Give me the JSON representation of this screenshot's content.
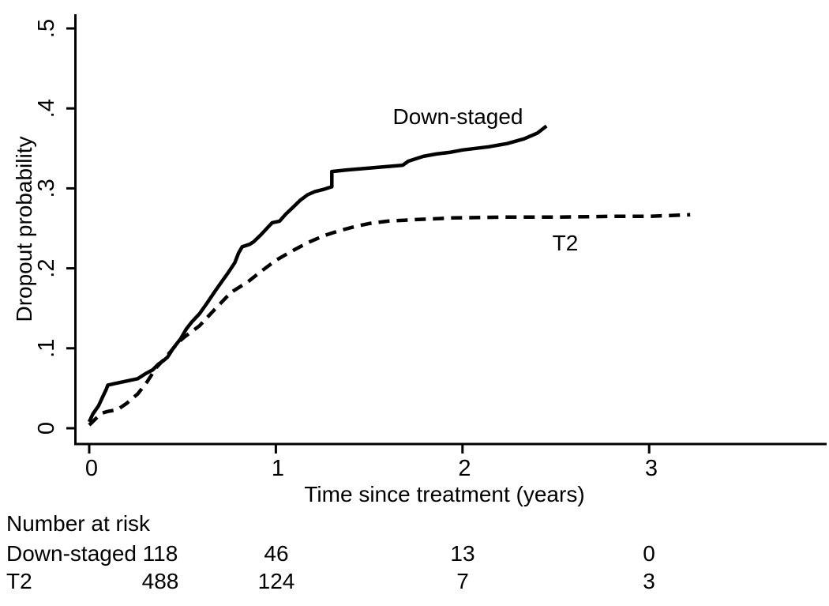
{
  "figure": {
    "background_color": "#ffffff",
    "line_color": "#000000"
  },
  "chart_data": {
    "type": "line",
    "title": "",
    "xlabel": "Time since treatment (years)",
    "ylabel": "Dropout probability",
    "xlim": [
      0,
      3.9
    ],
    "ylim": [
      0,
      0.52
    ],
    "grid": false,
    "legend_position": "inline-labels",
    "xticks": [
      {
        "value": 0,
        "label": "0"
      },
      {
        "value": 1,
        "label": "1"
      },
      {
        "value": 2,
        "label": "2"
      },
      {
        "value": 3,
        "label": "3"
      }
    ],
    "yticks": [
      {
        "value": 0.5,
        "label": ".5"
      },
      {
        "value": 0.4,
        "label": ".4"
      },
      {
        "value": 0.3,
        "label": ".3"
      },
      {
        "value": 0.2,
        "label": ".2"
      },
      {
        "value": 0.1,
        "label": ".1"
      },
      {
        "value": 0.0,
        "label": "0"
      }
    ],
    "series": [
      {
        "name": "Down-staged",
        "label": "Down-staged",
        "style": "solid",
        "points": [
          [
            0,
            0.008
          ],
          [
            0.02,
            0.018
          ],
          [
            0.05,
            0.028
          ],
          [
            0.07,
            0.038
          ],
          [
            0.09,
            0.048
          ],
          [
            0.1,
            0.054
          ],
          [
            0.14,
            0.056
          ],
          [
            0.18,
            0.058
          ],
          [
            0.22,
            0.06
          ],
          [
            0.26,
            0.062
          ],
          [
            0.3,
            0.068
          ],
          [
            0.34,
            0.073
          ],
          [
            0.37,
            0.08
          ],
          [
            0.4,
            0.085
          ],
          [
            0.42,
            0.089
          ],
          [
            0.45,
            0.1
          ],
          [
            0.49,
            0.112
          ],
          [
            0.52,
            0.124
          ],
          [
            0.55,
            0.133
          ],
          [
            0.59,
            0.143
          ],
          [
            0.63,
            0.156
          ],
          [
            0.67,
            0.17
          ],
          [
            0.7,
            0.18
          ],
          [
            0.74,
            0.193
          ],
          [
            0.78,
            0.207
          ],
          [
            0.8,
            0.219
          ],
          [
            0.82,
            0.227
          ],
          [
            0.86,
            0.23
          ],
          [
            0.88,
            0.233
          ],
          [
            0.92,
            0.242
          ],
          [
            0.96,
            0.252
          ],
          [
            0.98,
            0.257
          ],
          [
            1.02,
            0.259
          ],
          [
            1.05,
            0.267
          ],
          [
            1.09,
            0.276
          ],
          [
            1.13,
            0.285
          ],
          [
            1.17,
            0.292
          ],
          [
            1.21,
            0.296
          ],
          [
            1.26,
            0.299
          ],
          [
            1.3,
            0.302
          ],
          [
            1.3,
            0.321
          ],
          [
            1.38,
            0.323
          ],
          [
            1.48,
            0.325
          ],
          [
            1.58,
            0.327
          ],
          [
            1.68,
            0.329
          ],
          [
            1.71,
            0.334
          ],
          [
            1.79,
            0.34
          ],
          [
            1.86,
            0.343
          ],
          [
            1.93,
            0.345
          ],
          [
            2.0,
            0.348
          ],
          [
            2.07,
            0.35
          ],
          [
            2.14,
            0.352
          ],
          [
            2.24,
            0.356
          ],
          [
            2.33,
            0.362
          ],
          [
            2.4,
            0.369
          ],
          [
            2.45,
            0.378
          ]
        ]
      },
      {
        "name": "T2",
        "label": "T2",
        "style": "dashed",
        "points": [
          [
            0,
            0.004
          ],
          [
            0.04,
            0.013
          ],
          [
            0.07,
            0.019
          ],
          [
            0.1,
            0.021
          ],
          [
            0.15,
            0.023
          ],
          [
            0.2,
            0.031
          ],
          [
            0.26,
            0.043
          ],
          [
            0.31,
            0.058
          ],
          [
            0.36,
            0.076
          ],
          [
            0.4,
            0.086
          ],
          [
            0.44,
            0.097
          ],
          [
            0.48,
            0.108
          ],
          [
            0.51,
            0.114
          ],
          [
            0.55,
            0.121
          ],
          [
            0.59,
            0.128
          ],
          [
            0.67,
            0.148
          ],
          [
            0.76,
            0.17
          ],
          [
            0.85,
            0.183
          ],
          [
            0.92,
            0.196
          ],
          [
            1.0,
            0.21
          ],
          [
            1.09,
            0.222
          ],
          [
            1.17,
            0.232
          ],
          [
            1.26,
            0.241
          ],
          [
            1.34,
            0.247
          ],
          [
            1.42,
            0.252
          ],
          [
            1.5,
            0.256
          ],
          [
            1.6,
            0.259
          ],
          [
            1.75,
            0.261
          ],
          [
            1.95,
            0.263
          ],
          [
            2.2,
            0.264
          ],
          [
            2.5,
            0.264
          ],
          [
            2.8,
            0.265
          ],
          [
            3.0,
            0.265
          ],
          [
            3.22,
            0.267
          ]
        ]
      }
    ]
  },
  "risk_table": {
    "title": "Number at risk",
    "time_points": [
      0,
      1,
      2,
      3
    ],
    "rows": [
      {
        "label": "Down-staged",
        "counts": [
          "118",
          "46",
          "13",
          "0"
        ]
      },
      {
        "label": "T2",
        "counts": [
          "488",
          "124",
          "7",
          "3"
        ]
      }
    ]
  }
}
